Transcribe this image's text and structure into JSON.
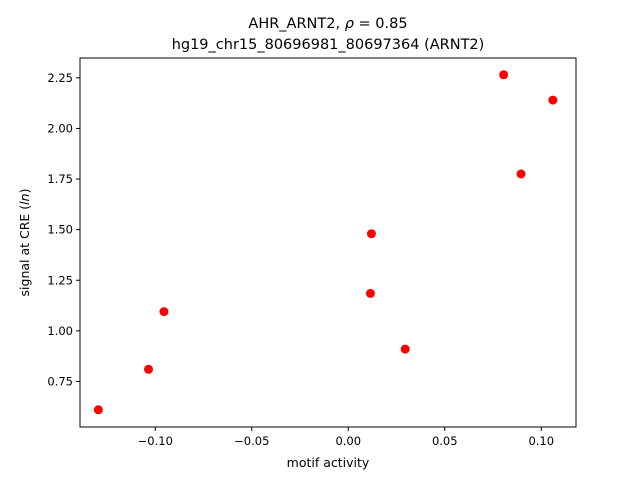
{
  "chart_data": {
    "type": "scatter",
    "title_line1": "AHR_ARNT2, ρ = 0.85",
    "title_line2": "hg19_chr15_80696981_80697364 (ARNT2)",
    "xlabel": "motif activity",
    "ylabel": "signal at CRE (ln)",
    "xlim": [
      -0.139,
      0.118
    ],
    "ylim": [
      0.525,
      2.348
    ],
    "xticks": [
      {
        "value": -0.1,
        "label": "−0.10"
      },
      {
        "value": -0.05,
        "label": "−0.05"
      },
      {
        "value": 0.0,
        "label": "0.00"
      },
      {
        "value": 0.05,
        "label": "0.05"
      },
      {
        "value": 0.1,
        "label": "0.10"
      }
    ],
    "yticks": [
      {
        "value": 0.75,
        "label": "0.75"
      },
      {
        "value": 1.0,
        "label": "1.00"
      },
      {
        "value": 1.25,
        "label": "1.25"
      },
      {
        "value": 1.5,
        "label": "1.50"
      },
      {
        "value": 1.75,
        "label": "1.75"
      },
      {
        "value": 2.0,
        "label": "2.00"
      },
      {
        "value": 2.25,
        "label": "2.25"
      }
    ],
    "points": [
      {
        "x": -0.1295,
        "y": 0.61
      },
      {
        "x": -0.1035,
        "y": 0.81
      },
      {
        "x": -0.0955,
        "y": 1.095
      },
      {
        "x": 0.0115,
        "y": 1.185
      },
      {
        "x": 0.012,
        "y": 1.48
      },
      {
        "x": 0.0295,
        "y": 0.91
      },
      {
        "x": 0.0805,
        "y": 2.265
      },
      {
        "x": 0.0895,
        "y": 1.775
      },
      {
        "x": 0.106,
        "y": 2.14
      }
    ],
    "marker_color": "#ff0000",
    "grid": false
  }
}
